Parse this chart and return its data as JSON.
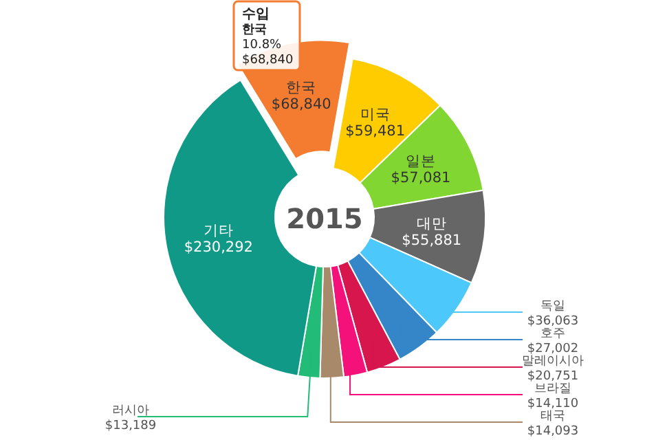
{
  "chart_data": {
    "type": "donut",
    "title": "2015",
    "categories": [
      "한국",
      "미국",
      "일본",
      "대만",
      "독일",
      "호주",
      "말레이시아",
      "브라질",
      "태국",
      "러시아",
      "기타"
    ],
    "values": [
      68840,
      59481,
      57081,
      55881,
      36063,
      27002,
      20751,
      14110,
      14093,
      13189,
      230292
    ],
    "value_labels": [
      "$68,840",
      "$59,481",
      "$57,081",
      "$55,881",
      "$36,063",
      "$27,002",
      "$20,751",
      "$14,110",
      "$14,093",
      "$13,189",
      "$230,292"
    ],
    "colors": [
      "#f47c30",
      "#ffcc00",
      "#82d631",
      "#666666",
      "#4dc8fa",
      "#3586c8",
      "#d6164d",
      "#f5117a",
      "#a88a6a",
      "#22bb77",
      "#119988"
    ],
    "annotations": [
      "수입",
      "한국",
      "10.8%",
      "$68,840"
    ]
  }
}
